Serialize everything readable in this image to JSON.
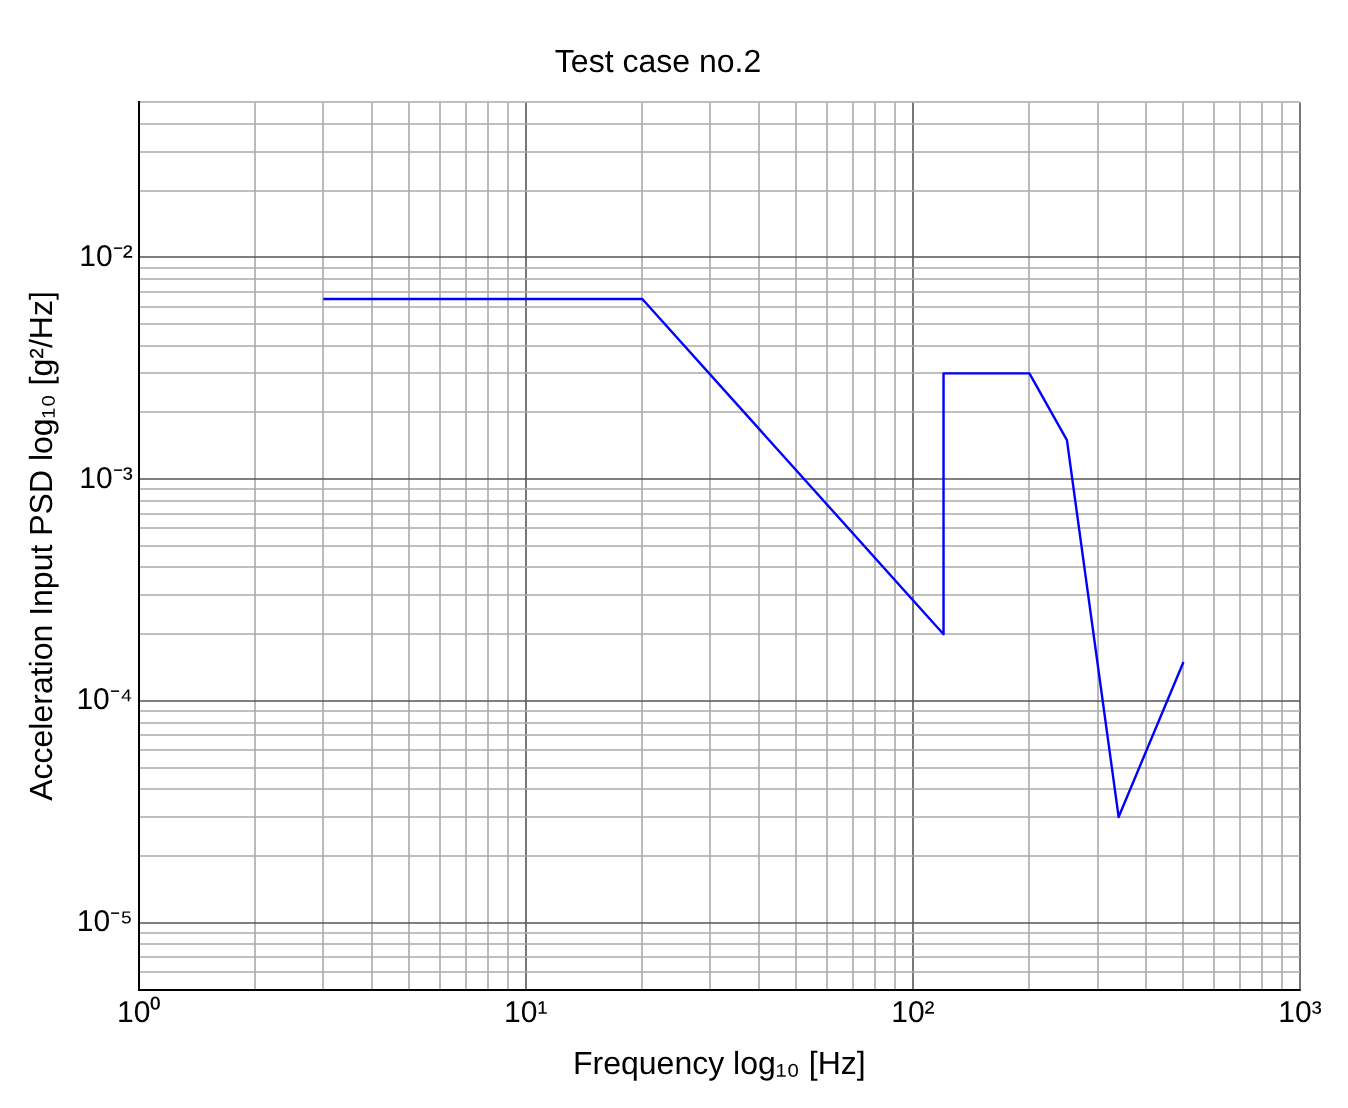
{
  "chart_data": {
    "type": "line",
    "title": "Test case no.2",
    "xlabel": "Frequency log₁₀ [Hz]",
    "ylabel": "Acceleration Input PSD log₁₀ [g²/Hz]",
    "log": "xy",
    "grid": true,
    "marker": "none",
    "line_style": "solid",
    "xlim": [
      1,
      1000
    ],
    "ylim": [
      5e-06,
      0.05
    ],
    "xticks": [
      {
        "value": 1,
        "label": "10⁰"
      },
      {
        "value": 2,
        "label": null
      },
      {
        "value": 3,
        "label": null
      },
      {
        "value": 4,
        "label": null
      },
      {
        "value": 5,
        "label": null
      },
      {
        "value": 6,
        "label": null
      },
      {
        "value": 7,
        "label": null
      },
      {
        "value": 8,
        "label": null
      },
      {
        "value": 9,
        "label": null
      },
      {
        "value": 10,
        "label": "10¹"
      },
      {
        "value": 20,
        "label": null
      },
      {
        "value": 30,
        "label": null
      },
      {
        "value": 40,
        "label": null
      },
      {
        "value": 50,
        "label": null
      },
      {
        "value": 60,
        "label": null
      },
      {
        "value": 70,
        "label": null
      },
      {
        "value": 80,
        "label": null
      },
      {
        "value": 90,
        "label": null
      },
      {
        "value": 100,
        "label": "10²"
      },
      {
        "value": 200,
        "label": null
      },
      {
        "value": 300,
        "label": null
      },
      {
        "value": 400,
        "label": null
      },
      {
        "value": 500,
        "label": null
      },
      {
        "value": 600,
        "label": null
      },
      {
        "value": 700,
        "label": null
      },
      {
        "value": 800,
        "label": null
      },
      {
        "value": 900,
        "label": null
      },
      {
        "value": 1000,
        "label": "10³"
      }
    ],
    "yticks": [
      {
        "value": 5e-06,
        "label": null
      },
      {
        "value": 6e-06,
        "label": null
      },
      {
        "value": 7e-06,
        "label": null
      },
      {
        "value": 8e-06,
        "label": null
      },
      {
        "value": 9e-06,
        "label": null
      },
      {
        "value": 1e-05,
        "label": "10⁻⁵"
      },
      {
        "value": 2e-05,
        "label": null
      },
      {
        "value": 3e-05,
        "label": null
      },
      {
        "value": 4e-05,
        "label": null
      },
      {
        "value": 5e-05,
        "label": null
      },
      {
        "value": 6e-05,
        "label": null
      },
      {
        "value": 7e-05,
        "label": null
      },
      {
        "value": 8e-05,
        "label": null
      },
      {
        "value": 9e-05,
        "label": null
      },
      {
        "value": 0.0001,
        "label": "10⁻⁴"
      },
      {
        "value": 0.0002,
        "label": null
      },
      {
        "value": 0.0003,
        "label": null
      },
      {
        "value": 0.0004,
        "label": null
      },
      {
        "value": 0.0005,
        "label": null
      },
      {
        "value": 0.0006,
        "label": null
      },
      {
        "value": 0.0007,
        "label": null
      },
      {
        "value": 0.0008,
        "label": null
      },
      {
        "value": 0.0009,
        "label": null
      },
      {
        "value": 0.001,
        "label": "10⁻³"
      },
      {
        "value": 0.002,
        "label": null
      },
      {
        "value": 0.003,
        "label": null
      },
      {
        "value": 0.004,
        "label": null
      },
      {
        "value": 0.005,
        "label": null
      },
      {
        "value": 0.006,
        "label": null
      },
      {
        "value": 0.007,
        "label": null
      },
      {
        "value": 0.008,
        "label": null
      },
      {
        "value": 0.009,
        "label": null
      },
      {
        "value": 0.01,
        "label": "10⁻²"
      },
      {
        "value": 0.02,
        "label": null
      },
      {
        "value": 0.03,
        "label": null
      },
      {
        "value": 0.04,
        "label": null
      },
      {
        "value": 0.05,
        "label": null
      }
    ],
    "series": [
      {
        "color": "#0000ff",
        "x": [
          3,
          20,
          120,
          120,
          200,
          250,
          340,
          500
        ],
        "values": [
          0.0065,
          0.0065,
          0.0002,
          0.003,
          0.003,
          0.0015,
          3e-05,
          0.00015
        ]
      }
    ]
  }
}
